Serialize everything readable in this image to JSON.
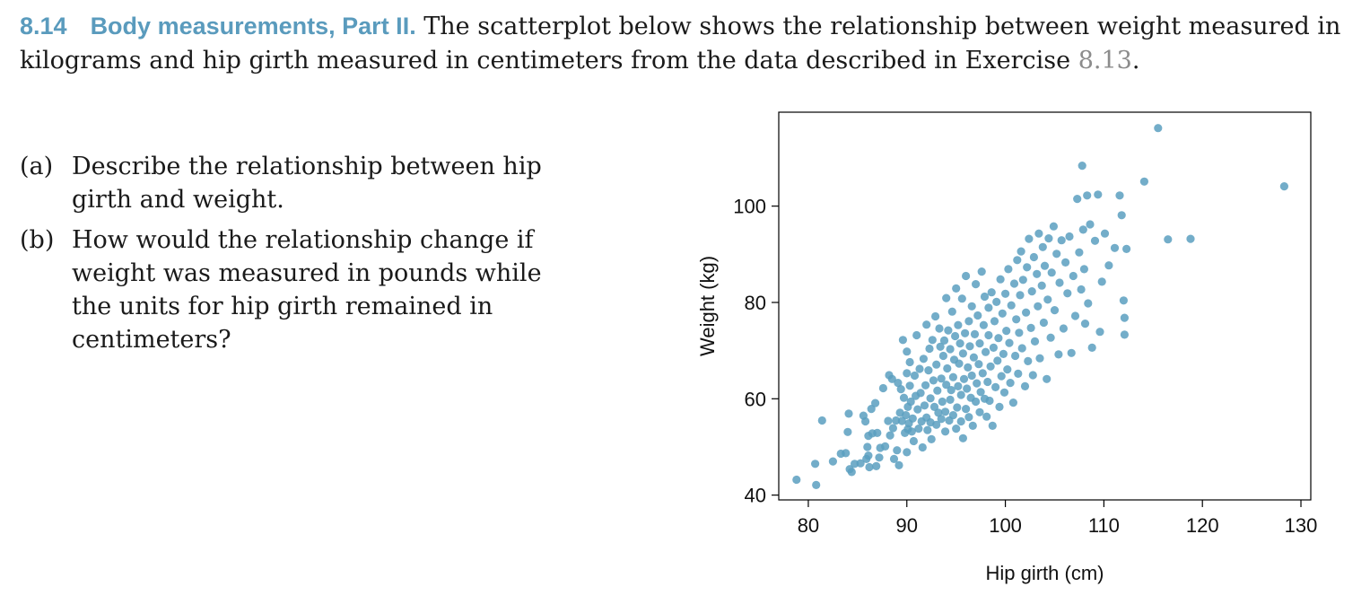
{
  "exercise": {
    "number": "8.14",
    "title": "Body measurements, Part II.",
    "text_before_ref": " The scatterplot below shows the relationship between weight measured in kilograms and hip girth measured in centimeters from the data described in Exercise ",
    "ref": "8.13",
    "text_after_ref": "."
  },
  "questions": [
    {
      "label": "(a)",
      "text": "Describe the relationship between hip girth and weight."
    },
    {
      "label": "(b)",
      "text": "How would the relationship change if weight was measured in pounds while the units for hip girth remained in centimeters?"
    }
  ],
  "colors": {
    "accent": "#5a9bbd",
    "point": "#5b9fc0",
    "ref": "#8c8c8c"
  },
  "chart_data": {
    "type": "scatter",
    "title": "",
    "xlabel": "Hip girth (cm)",
    "ylabel": "Weight (kg)",
    "xlim": [
      77,
      131
    ],
    "ylim": [
      39,
      119.5
    ],
    "xticks": [
      80,
      90,
      100,
      110,
      120,
      130
    ],
    "yticks": [
      40,
      60,
      80,
      100
    ],
    "grid": false,
    "legend": "none",
    "points": [
      [
        78.8,
        43.2
      ],
      [
        80.8,
        42.1
      ],
      [
        80.7,
        46.5
      ],
      [
        81.4,
        55.5
      ],
      [
        82.5,
        47
      ],
      [
        83.3,
        48.6
      ],
      [
        83.8,
        48.7
      ],
      [
        84,
        53.1
      ],
      [
        84.1,
        56.9
      ],
      [
        84.2,
        45.4
      ],
      [
        84.4,
        44.8
      ],
      [
        84.7,
        46.5
      ],
      [
        85.3,
        46.6
      ],
      [
        85.6,
        56.5
      ],
      [
        85.8,
        55.3
      ],
      [
        85.9,
        47.5
      ],
      [
        86,
        50
      ],
      [
        86.1,
        48.2
      ],
      [
        86.1,
        52.3
      ],
      [
        86.2,
        45.8
      ],
      [
        86.4,
        57.9
      ],
      [
        86.5,
        52.8
      ],
      [
        86.8,
        59.1
      ],
      [
        87,
        52.9
      ],
      [
        86.9,
        46
      ],
      [
        87.2,
        47.8
      ],
      [
        87.3,
        49.8
      ],
      [
        87.6,
        62.2
      ],
      [
        87.8,
        50.1
      ],
      [
        88.1,
        55.4
      ],
      [
        88.2,
        64.9
      ],
      [
        88.3,
        52.4
      ],
      [
        88.5,
        64.1
      ],
      [
        88.6,
        53.9
      ],
      [
        88.7,
        47.5
      ],
      [
        88.9,
        55.5
      ],
      [
        89,
        49.3
      ],
      [
        89.1,
        63.3
      ],
      [
        89.2,
        46.2
      ],
      [
        89.3,
        57.1
      ],
      [
        89.4,
        62
      ],
      [
        89.5,
        55.4
      ],
      [
        89.6,
        72.2
      ],
      [
        89.7,
        60.2
      ],
      [
        89.8,
        52.9
      ],
      [
        89.9,
        56.6
      ],
      [
        90,
        69.8
      ],
      [
        90,
        65.3
      ],
      [
        90,
        48.9
      ],
      [
        90.1,
        53.7
      ],
      [
        90.1,
        58.3
      ],
      [
        90.2,
        54.9
      ],
      [
        90.3,
        62.7
      ],
      [
        90.3,
        67.6
      ],
      [
        90.4,
        59.4
      ],
      [
        90.5,
        53.2
      ],
      [
        90.6,
        55.9
      ],
      [
        90.7,
        51.2
      ],
      [
        90.8,
        64.8
      ],
      [
        90.9,
        60.6
      ],
      [
        91,
        73.2
      ],
      [
        91.1,
        57.8
      ],
      [
        91.2,
        53.8
      ],
      [
        91.3,
        66.2
      ],
      [
        91.4,
        61.2
      ],
      [
        91.5,
        55.3
      ],
      [
        91.6,
        49.9
      ],
      [
        91.7,
        68.3
      ],
      [
        91.8,
        58.6
      ],
      [
        91.9,
        62.8
      ],
      [
        92,
        75.4
      ],
      [
        92,
        56.1
      ],
      [
        92.1,
        53.5
      ],
      [
        92.2,
        65.9
      ],
      [
        92.3,
        70.4
      ],
      [
        92.4,
        60.1
      ],
      [
        92.4,
        55.1
      ],
      [
        92.5,
        51.6
      ],
      [
        92.6,
        72.2
      ],
      [
        92.7,
        63.8
      ],
      [
        92.8,
        58.3
      ],
      [
        92.9,
        77.1
      ],
      [
        93,
        54.6
      ],
      [
        93,
        67.1
      ],
      [
        93.1,
        61.7
      ],
      [
        93.2,
        57.1
      ],
      [
        93.3,
        74.6
      ],
      [
        93.4,
        70.8
      ],
      [
        93.5,
        55.8
      ],
      [
        93.5,
        64.2
      ],
      [
        93.6,
        59.4
      ],
      [
        93.7,
        68.9
      ],
      [
        93.8,
        72.1
      ],
      [
        93.9,
        53.2
      ],
      [
        93.9,
        57.3
      ],
      [
        94,
        62.9
      ],
      [
        94,
        80.9
      ],
      [
        94.1,
        66.3
      ],
      [
        94.2,
        74.2
      ],
      [
        94.3,
        55.5
      ],
      [
        94.4,
        59.8
      ],
      [
        94.4,
        70.3
      ],
      [
        94.5,
        61.8
      ],
      [
        94.6,
        78.1
      ],
      [
        94.7,
        64.5
      ],
      [
        94.7,
        56.6
      ],
      [
        94.8,
        68.1
      ],
      [
        94.9,
        73
      ],
      [
        95,
        53.8
      ],
      [
        95,
        82.9
      ],
      [
        95.1,
        58.2
      ],
      [
        95.2,
        62.6
      ],
      [
        95.2,
        75.3
      ],
      [
        95.3,
        67.3
      ],
      [
        95.4,
        71.5
      ],
      [
        95.5,
        55.3
      ],
      [
        95.5,
        60.8
      ],
      [
        95.6,
        80.8
      ],
      [
        95.7,
        51.8
      ],
      [
        95.7,
        69.4
      ],
      [
        95.8,
        64.1
      ],
      [
        95.9,
        73.6
      ],
      [
        96,
        57.9
      ],
      [
        96,
        85.5
      ],
      [
        96.1,
        62.1
      ],
      [
        96.2,
        66.5
      ],
      [
        96.3,
        76.1
      ],
      [
        96.3,
        56.2
      ],
      [
        96.4,
        70.9
      ],
      [
        96.5,
        60.2
      ],
      [
        96.6,
        79.2
      ],
      [
        96.6,
        64.8
      ],
      [
        96.7,
        54.4
      ],
      [
        96.8,
        68.6
      ],
      [
        96.9,
        73.4
      ],
      [
        97,
        59.4
      ],
      [
        97,
        83.8
      ],
      [
        97.1,
        63.2
      ],
      [
        97.2,
        77.3
      ],
      [
        97.3,
        67.2
      ],
      [
        97.4,
        57.2
      ],
      [
        97.4,
        71.5
      ],
      [
        97.5,
        61.4
      ],
      [
        97.6,
        86.4
      ],
      [
        97.7,
        65.3
      ],
      [
        97.8,
        75.3
      ],
      [
        97.9,
        60
      ],
      [
        97.9,
        81.2
      ],
      [
        98,
        69.7
      ],
      [
        98.1,
        56.3
      ],
      [
        98.2,
        63.5
      ],
      [
        98.3,
        78.9
      ],
      [
        98.3,
        73.2
      ],
      [
        98.4,
        59.6
      ],
      [
        98.5,
        66.7
      ],
      [
        98.6,
        82.1
      ],
      [
        98.7,
        54.4
      ],
      [
        98.8,
        70.6
      ],
      [
        98.9,
        76.1
      ],
      [
        99,
        62.4
      ],
      [
        99.1,
        80.1
      ],
      [
        99.2,
        67.9
      ],
      [
        99.3,
        72.6
      ],
      [
        99.4,
        58.3
      ],
      [
        99.5,
        84.8
      ],
      [
        99.6,
        64.7
      ],
      [
        99.7,
        77.7
      ],
      [
        99.8,
        69.3
      ],
      [
        99.9,
        61.3
      ],
      [
        100,
        81.8
      ],
      [
        100.1,
        74.1
      ],
      [
        100.2,
        66.1
      ],
      [
        100.3,
        86.9
      ],
      [
        100.4,
        71.6
      ],
      [
        100.5,
        63.3
      ],
      [
        100.6,
        79.4
      ],
      [
        100.8,
        59.2
      ],
      [
        100.9,
        83.9
      ],
      [
        101,
        68.9
      ],
      [
        101.1,
        76.5
      ],
      [
        101.2,
        88.8
      ],
      [
        101.3,
        65.2
      ],
      [
        101.4,
        73.7
      ],
      [
        101.5,
        81.5
      ],
      [
        101.6,
        90.6
      ],
      [
        101.7,
        70.5
      ],
      [
        101.8,
        84.7
      ],
      [
        102,
        62.6
      ],
      [
        102.1,
        77.9
      ],
      [
        102.2,
        87.3
      ],
      [
        102.3,
        67.8
      ],
      [
        102.4,
        93.2
      ],
      [
        102.6,
        74.7
      ],
      [
        102.7,
        82.3
      ],
      [
        102.8,
        64.9
      ],
      [
        102.9,
        89.4
      ],
      [
        103,
        71.9
      ],
      [
        103.2,
        85.9
      ],
      [
        103.3,
        79.2
      ],
      [
        103.4,
        94.3
      ],
      [
        103.5,
        68.4
      ],
      [
        103.7,
        83.5
      ],
      [
        103.8,
        91.5
      ],
      [
        103.9,
        75.8
      ],
      [
        104,
        87.6
      ],
      [
        104.2,
        64.1
      ],
      [
        104.3,
        80.6
      ],
      [
        104.4,
        93.3
      ],
      [
        104.6,
        72.7
      ],
      [
        104.7,
        86.2
      ],
      [
        104.9,
        95.8
      ],
      [
        105,
        78.4
      ],
      [
        105.2,
        90.1
      ],
      [
        105.4,
        69.2
      ],
      [
        105.5,
        84.1
      ],
      [
        105.7,
        92.9
      ],
      [
        105.9,
        74.6
      ],
      [
        106.1,
        88.3
      ],
      [
        106.3,
        81.9
      ],
      [
        106.5,
        93.7
      ],
      [
        106.7,
        69.5
      ],
      [
        106.9,
        85.5
      ],
      [
        107.1,
        77.2
      ],
      [
        107.3,
        101.5
      ],
      [
        107.5,
        90.4
      ],
      [
        107.7,
        82.7
      ],
      [
        107.8,
        108.4
      ],
      [
        107.9,
        95.1
      ],
      [
        108,
        86.9
      ],
      [
        108.1,
        75.6
      ],
      [
        108.3,
        102.2
      ],
      [
        108.4,
        79.8
      ],
      [
        108.6,
        96.2
      ],
      [
        108.8,
        70.6
      ],
      [
        109.1,
        92.8
      ],
      [
        109.4,
        102.4
      ],
      [
        109.6,
        73.9
      ],
      [
        109.8,
        84.3
      ],
      [
        110.1,
        94.3
      ],
      [
        110.5,
        87.7
      ],
      [
        111.1,
        91.3
      ],
      [
        111.6,
        102.2
      ],
      [
        111.8,
        98.1
      ],
      [
        112,
        80.4
      ],
      [
        112.1,
        76.8
      ],
      [
        112.1,
        73.3
      ],
      [
        112.3,
        91.1
      ],
      [
        114.1,
        105.1
      ],
      [
        115.5,
        116.2
      ],
      [
        116.5,
        93.1
      ],
      [
        118.8,
        93.2
      ],
      [
        128.3,
        104.1
      ]
    ]
  }
}
